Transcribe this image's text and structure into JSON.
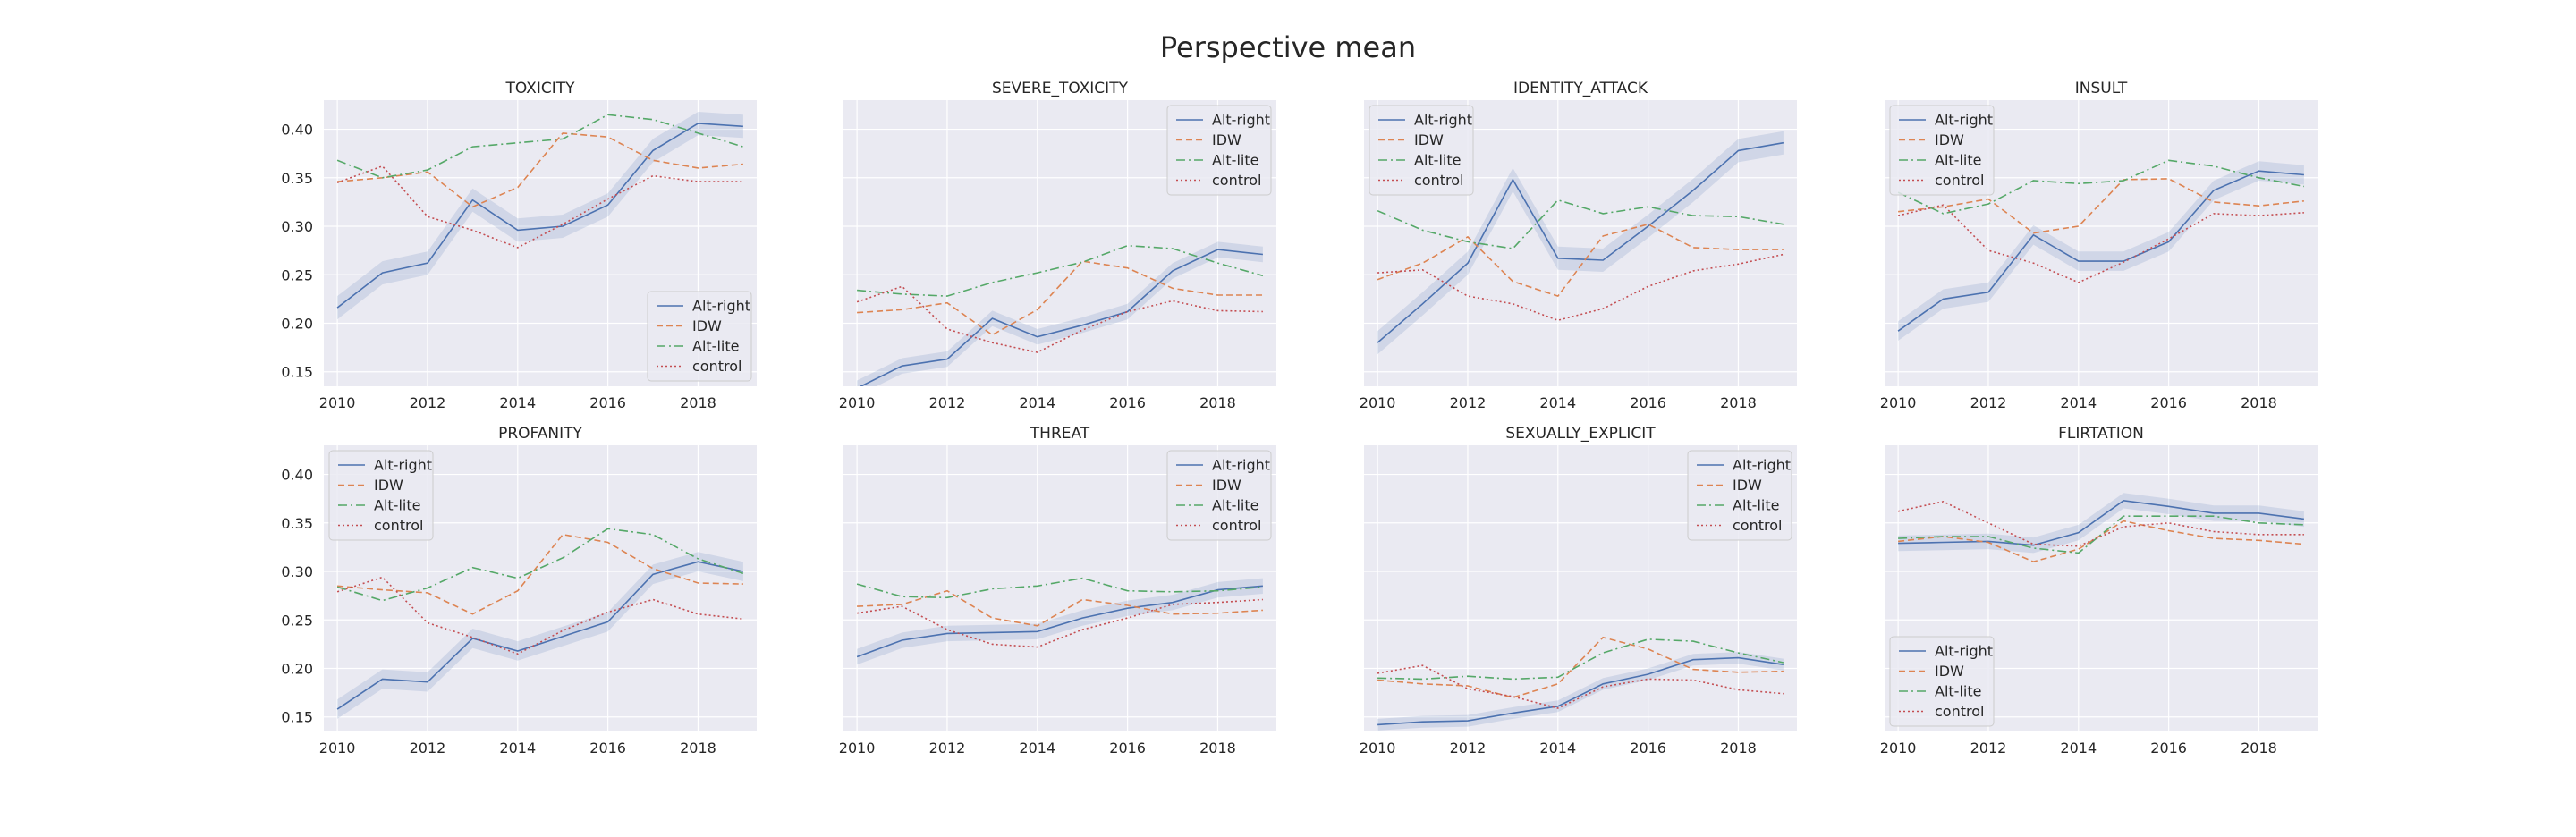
{
  "title": "Perspective mean",
  "chart_data": {
    "type": "line",
    "x": [
      2010,
      2011,
      2012,
      2013,
      2014,
      2015,
      2016,
      2017,
      2018,
      2019
    ],
    "xticks": [
      2010,
      2012,
      2014,
      2016,
      2018
    ],
    "xlim": [
      2009.7,
      2019.3
    ],
    "ylim": [
      0.135,
      0.43
    ],
    "yticks": [
      0.15,
      0.2,
      0.25,
      0.3,
      0.35,
      0.4
    ],
    "grid": true,
    "series_styles": [
      {
        "name": "Alt-right",
        "color": "#4c72b0",
        "dash": ""
      },
      {
        "name": "IDW",
        "color": "#dd8452",
        "dash": "7,4"
      },
      {
        "name": "Alt-lite",
        "color": "#55a868",
        "dash": "10,4,2,4"
      },
      {
        "name": "control",
        "color": "#c44e52",
        "dash": "2,3"
      }
    ],
    "panels": [
      {
        "title": "TOXICITY",
        "legend": [
          "lower-right"
        ],
        "show_yticks": true,
        "series": [
          {
            "name": "Alt-right",
            "values": [
              0.216,
              0.252,
              0.262,
              0.327,
              0.296,
              0.3,
              0.322,
              0.378,
              0.406,
              0.403
            ],
            "band": 0.012
          },
          {
            "name": "IDW",
            "values": [
              0.346,
              0.35,
              0.356,
              0.32,
              0.34,
              0.396,
              0.392,
              0.368,
              0.36,
              0.364
            ]
          },
          {
            "name": "Alt-lite",
            "values": [
              0.368,
              0.35,
              0.358,
              0.382,
              0.386,
              0.39,
              0.415,
              0.41,
              0.396,
              0.382
            ]
          },
          {
            "name": "control",
            "values": [
              0.345,
              0.362,
              0.31,
              0.296,
              0.278,
              0.302,
              0.328,
              0.352,
              0.346,
              0.346
            ]
          }
        ]
      },
      {
        "title": "SEVERE_TOXICITY",
        "legend": [
          "upper-right"
        ],
        "show_yticks": false,
        "series": [
          {
            "name": "Alt-right",
            "values": [
              0.133,
              0.156,
              0.163,
              0.205,
              0.186,
              0.198,
              0.212,
              0.254,
              0.276,
              0.271
            ],
            "band": 0.008
          },
          {
            "name": "IDW",
            "values": [
              0.211,
              0.214,
              0.221,
              0.188,
              0.214,
              0.264,
              0.257,
              0.236,
              0.229,
              0.229
            ]
          },
          {
            "name": "Alt-lite",
            "values": [
              0.234,
              0.23,
              0.228,
              0.242,
              0.252,
              0.263,
              0.28,
              0.277,
              0.262,
              0.249
            ]
          },
          {
            "name": "control",
            "values": [
              0.222,
              0.238,
              0.194,
              0.18,
              0.17,
              0.193,
              0.212,
              0.223,
              0.213,
              0.212
            ]
          }
        ]
      },
      {
        "title": "IDENTITY_ATTACK",
        "legend": [
          "upper-left"
        ],
        "show_yticks": false,
        "series": [
          {
            "name": "Alt-right",
            "values": [
              0.18,
              0.22,
              0.262,
              0.348,
              0.267,
              0.265,
              0.3,
              0.337,
              0.378,
              0.386
            ],
            "band": 0.012
          },
          {
            "name": "IDW",
            "values": [
              0.245,
              0.262,
              0.289,
              0.243,
              0.228,
              0.29,
              0.302,
              0.278,
              0.276,
              0.276
            ]
          },
          {
            "name": "Alt-lite",
            "values": [
              0.316,
              0.296,
              0.284,
              0.277,
              0.327,
              0.313,
              0.32,
              0.311,
              0.31,
              0.302
            ]
          },
          {
            "name": "control",
            "values": [
              0.252,
              0.255,
              0.228,
              0.22,
              0.203,
              0.215,
              0.238,
              0.254,
              0.261,
              0.271
            ]
          }
        ]
      },
      {
        "title": "INSULT",
        "legend": [
          "upper-left"
        ],
        "show_yticks": false,
        "series": [
          {
            "name": "Alt-right",
            "values": [
              0.192,
              0.225,
              0.232,
              0.291,
              0.264,
              0.264,
              0.284,
              0.337,
              0.357,
              0.353
            ],
            "band": 0.01
          },
          {
            "name": "IDW",
            "values": [
              0.315,
              0.32,
              0.328,
              0.293,
              0.3,
              0.348,
              0.349,
              0.325,
              0.321,
              0.326
            ]
          },
          {
            "name": "Alt-lite",
            "values": [
              0.335,
              0.313,
              0.323,
              0.347,
              0.344,
              0.347,
              0.368,
              0.362,
              0.35,
              0.341
            ]
          },
          {
            "name": "control",
            "values": [
              0.311,
              0.322,
              0.275,
              0.262,
              0.242,
              0.263,
              0.287,
              0.313,
              0.311,
              0.314
            ]
          }
        ]
      },
      {
        "title": "PROFANITY",
        "legend": [
          "upper-left"
        ],
        "show_yticks": true,
        "series": [
          {
            "name": "Alt-right",
            "values": [
              0.158,
              0.189,
              0.186,
              0.231,
              0.218,
              0.233,
              0.248,
              0.297,
              0.31,
              0.3
            ],
            "band": 0.01
          },
          {
            "name": "IDW",
            "values": [
              0.285,
              0.281,
              0.278,
              0.256,
              0.28,
              0.338,
              0.33,
              0.303,
              0.288,
              0.287
            ]
          },
          {
            "name": "Alt-lite",
            "values": [
              0.284,
              0.27,
              0.283,
              0.304,
              0.293,
              0.314,
              0.344,
              0.338,
              0.313,
              0.298
            ]
          },
          {
            "name": "control",
            "values": [
              0.279,
              0.294,
              0.247,
              0.232,
              0.215,
              0.239,
              0.258,
              0.271,
              0.256,
              0.251
            ]
          }
        ]
      },
      {
        "title": "THREAT",
        "legend": [
          "upper-right"
        ],
        "show_yticks": false,
        "series": [
          {
            "name": "Alt-right",
            "values": [
              0.212,
              0.229,
              0.236,
              0.237,
              0.238,
              0.252,
              0.262,
              0.268,
              0.281,
              0.285
            ],
            "band": 0.008
          },
          {
            "name": "IDW",
            "values": [
              0.264,
              0.266,
              0.28,
              0.252,
              0.244,
              0.271,
              0.265,
              0.256,
              0.257,
              0.26
            ]
          },
          {
            "name": "Alt-lite",
            "values": [
              0.287,
              0.274,
              0.273,
              0.282,
              0.285,
              0.293,
              0.28,
              0.279,
              0.28,
              0.284
            ]
          },
          {
            "name": "control",
            "values": [
              0.257,
              0.264,
              0.24,
              0.225,
              0.222,
              0.24,
              0.252,
              0.266,
              0.268,
              0.271
            ]
          }
        ]
      },
      {
        "title": "SEXUALLY_EXPLICIT",
        "legend": [
          "upper-right"
        ],
        "show_yticks": false,
        "series": [
          {
            "name": "Alt-right",
            "values": [
              0.142,
              0.145,
              0.146,
              0.154,
              0.161,
              0.184,
              0.194,
              0.209,
              0.211,
              0.204
            ],
            "band": 0.006
          },
          {
            "name": "IDW",
            "values": [
              0.188,
              0.184,
              0.182,
              0.17,
              0.184,
              0.232,
              0.22,
              0.199,
              0.196,
              0.197
            ]
          },
          {
            "name": "Alt-lite",
            "values": [
              0.19,
              0.189,
              0.192,
              0.189,
              0.191,
              0.216,
              0.23,
              0.228,
              0.216,
              0.206
            ]
          },
          {
            "name": "control",
            "values": [
              0.195,
              0.203,
              0.179,
              0.171,
              0.159,
              0.181,
              0.189,
              0.188,
              0.178,
              0.174
            ]
          }
        ]
      },
      {
        "title": "FLIRTATION",
        "legend": [
          "lower-left"
        ],
        "show_yticks": false,
        "series": [
          {
            "name": "Alt-right",
            "values": [
              0.329,
              0.33,
              0.331,
              0.327,
              0.34,
              0.373,
              0.367,
              0.36,
              0.36,
              0.354
            ],
            "band": 0.008
          },
          {
            "name": "IDW",
            "values": [
              0.331,
              0.336,
              0.33,
              0.31,
              0.323,
              0.352,
              0.342,
              0.334,
              0.332,
              0.328
            ]
          },
          {
            "name": "Alt-lite",
            "values": [
              0.334,
              0.336,
              0.336,
              0.324,
              0.319,
              0.357,
              0.357,
              0.357,
              0.35,
              0.348
            ]
          },
          {
            "name": "control",
            "values": [
              0.362,
              0.372,
              0.35,
              0.328,
              0.326,
              0.346,
              0.35,
              0.341,
              0.338,
              0.338
            ]
          }
        ]
      }
    ]
  }
}
